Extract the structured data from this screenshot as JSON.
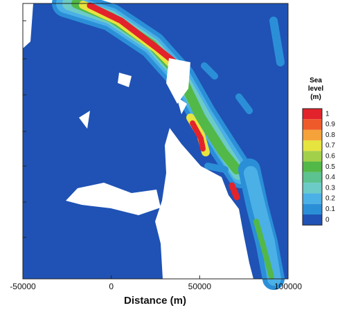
{
  "chart_data": {
    "type": "contour",
    "x_label": "Distance (m)",
    "xlim": [
      -50000,
      100000
    ],
    "xticks": [
      -50000,
      0,
      50000,
      100000
    ],
    "colorbar": {
      "title": "Sea level (m)",
      "levels": [
        1,
        0.9,
        0.8,
        0.7,
        0.6,
        0.5,
        0.4,
        0.3,
        0.2,
        0.1,
        0
      ],
      "colors": [
        "#e3232b",
        "#ef5a2b",
        "#f5a23a",
        "#e6e43f",
        "#a3d04a",
        "#52b848",
        "#5cc28f",
        "#6ccbc6",
        "#4bb0e6",
        "#2b8fd8",
        "#1f52b4"
      ]
    }
  }
}
